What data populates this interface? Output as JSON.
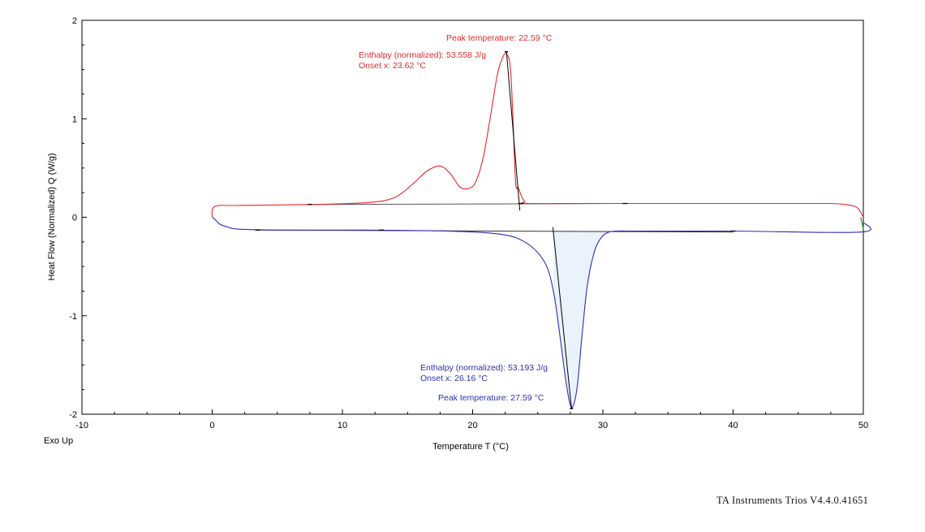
{
  "chart_data": {
    "type": "line",
    "xlabel": "Temperature T (°C)",
    "ylabel": "Heat Flow (Normalized) Q (W/g)",
    "xlim": [
      -10,
      50
    ],
    "ylim": [
      -2,
      2
    ],
    "x_ticks": [
      "-10",
      "0",
      "10",
      "20",
      "30",
      "40",
      "50"
    ],
    "y_ticks": [
      "2",
      "1",
      "0",
      "-1",
      "-2"
    ],
    "x_tick_values": [
      -10,
      0,
      10,
      20,
      30,
      40,
      50
    ],
    "y_tick_values": [
      2,
      1,
      0,
      -1,
      -2
    ],
    "colors": {
      "upper": "#e8262a",
      "lower": "#2a2fb5",
      "fill": "#eaf2fb",
      "baseline": "#000000"
    },
    "series": [
      {
        "color": "#e8262a",
        "x": [
          0,
          0.2,
          2,
          8,
          12,
          14,
          15.5,
          16.5,
          17.5,
          18.3,
          19.0,
          19.6,
          20.2,
          20.8,
          21.4,
          21.9,
          22.3,
          22.59,
          22.9,
          23.1,
          23.3,
          23.5,
          23.8,
          24.0,
          24.3,
          30,
          40,
          47,
          48.5,
          49.5,
          50
        ],
        "y": [
          0,
          0.11,
          0.12,
          0.13,
          0.15,
          0.2,
          0.35,
          0.47,
          0.52,
          0.44,
          0.31,
          0.29,
          0.35,
          0.6,
          1.05,
          1.45,
          1.62,
          1.66,
          1.52,
          0.98,
          0.35,
          0.3,
          0.2,
          0.16,
          0.14,
          0.14,
          0.14,
          0.14,
          0.13,
          0.1,
          0.0
        ]
      },
      {
        "color": "#2a2fb5",
        "x": [
          0,
          0.2,
          0.6,
          1.2,
          2,
          5,
          12,
          18,
          22,
          24,
          25.5,
          26.2,
          26.8,
          27.2,
          27.59,
          28.0,
          28.4,
          28.8,
          29.3,
          29.8,
          30.3,
          31,
          33,
          40,
          49.8,
          50
        ],
        "y": [
          0,
          -0.02,
          -0.07,
          -0.1,
          -0.12,
          -0.13,
          -0.13,
          -0.14,
          -0.17,
          -0.25,
          -0.45,
          -0.75,
          -1.3,
          -1.7,
          -1.93,
          -1.75,
          -1.2,
          -0.7,
          -0.37,
          -0.22,
          -0.16,
          -0.14,
          -0.14,
          -0.14,
          -0.15,
          -0.05
        ]
      }
    ],
    "annotations": {
      "upper_peak": "Peak temperature: 22.59 °C",
      "upper_enthalpy": "Enthalpy (normalized): 53.558 J/g",
      "upper_onset": "Onset x: 23.62 °C",
      "lower_enthalpy": "Enthalpy (normalized): 53.193 J/g",
      "lower_onset": "Onset x: 26.16 °C",
      "lower_peak": "Peak temperature: 27.59 °C"
    }
  },
  "labels": {
    "exo": "Exo Up",
    "footer": "TA Instruments Trios V4.4.0.41651"
  }
}
